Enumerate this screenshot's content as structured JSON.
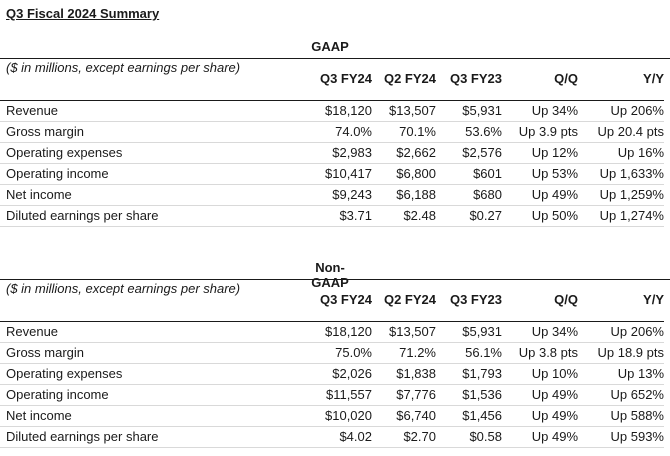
{
  "title": "Q3 Fiscal 2024 Summary",
  "sections": [
    {
      "name": "GAAP",
      "unit_note": "($ in millions, except earnings per share)",
      "columns": [
        "Q3 FY24",
        "Q2 FY24",
        "Q3 FY23",
        "Q/Q",
        "Y/Y"
      ],
      "rows": [
        {
          "label": "Revenue",
          "values": [
            "$18,120",
            "$13,507",
            "$5,931",
            "Up 34%",
            "Up 206%"
          ]
        },
        {
          "label": "Gross margin",
          "values": [
            "74.0%",
            "70.1%",
            "53.6%",
            "Up 3.9 pts",
            "Up 20.4 pts"
          ]
        },
        {
          "label": "Operating expenses",
          "values": [
            "$2,983",
            "$2,662",
            "$2,576",
            "Up 12%",
            "Up 16%"
          ]
        },
        {
          "label": "Operating income",
          "values": [
            "$10,417",
            "$6,800",
            "$601",
            "Up 53%",
            "Up 1,633%"
          ]
        },
        {
          "label": "Net income",
          "values": [
            "$9,243",
            "$6,188",
            "$680",
            "Up 49%",
            "Up 1,259%"
          ]
        },
        {
          "label": "Diluted earnings per share",
          "values": [
            "$3.71",
            "$2.48",
            "$0.27",
            "Up 50%",
            "Up 1,274%"
          ]
        }
      ]
    },
    {
      "name": "Non-GAAP",
      "unit_note": "($ in millions, except earnings per share)",
      "columns": [
        "Q3 FY24",
        "Q2 FY24",
        "Q3 FY23",
        "Q/Q",
        "Y/Y"
      ],
      "rows": [
        {
          "label": "Revenue",
          "values": [
            "$18,120",
            "$13,507",
            "$5,931",
            "Up 34%",
            "Up 206%"
          ]
        },
        {
          "label": "Gross margin",
          "values": [
            "75.0%",
            "71.2%",
            "56.1%",
            "Up 3.8 pts",
            "Up 18.9 pts"
          ]
        },
        {
          "label": "Operating expenses",
          "values": [
            "$2,026",
            "$1,838",
            "$1,793",
            "Up 10%",
            "Up 13%"
          ]
        },
        {
          "label": "Operating income",
          "values": [
            "$11,557",
            "$7,776",
            "$1,536",
            "Up 49%",
            "Up 652%"
          ]
        },
        {
          "label": "Net income",
          "values": [
            "$10,020",
            "$6,740",
            "$1,456",
            "Up 49%",
            "Up 588%"
          ]
        },
        {
          "label": "Diluted earnings per share",
          "values": [
            "$4.02",
            "$2.70",
            "$0.58",
            "Up 49%",
            "Up 593%"
          ]
        }
      ]
    }
  ]
}
